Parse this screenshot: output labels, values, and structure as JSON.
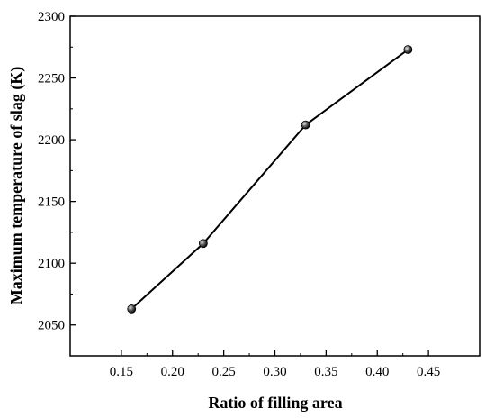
{
  "chart_data": {
    "type": "line",
    "title": "",
    "xlabel": "Ratio of filling area",
    "ylabel": "Maximum temperature of slag (K)",
    "xlim": [
      0.1,
      0.5
    ],
    "ylim": [
      2025,
      2300
    ],
    "xticks": [
      0.15,
      0.2,
      0.25,
      0.3,
      0.35,
      0.4,
      0.45
    ],
    "xtick_labels": [
      "0.15",
      "0.20",
      "0.25",
      "0.30",
      "0.35",
      "0.40",
      "0.45"
    ],
    "yticks": [
      2050,
      2100,
      2150,
      2200,
      2250,
      2300
    ],
    "ytick_labels": [
      "2050",
      "2100",
      "2150",
      "2200",
      "2250",
      "2300"
    ],
    "grid": false,
    "legend": "none",
    "series": [
      {
        "x": [
          0.16,
          0.23,
          0.33,
          0.43
        ],
        "y": [
          2063,
          2116,
          2212,
          2273
        ],
        "color": "#000000",
        "marker": "sphere"
      }
    ]
  }
}
